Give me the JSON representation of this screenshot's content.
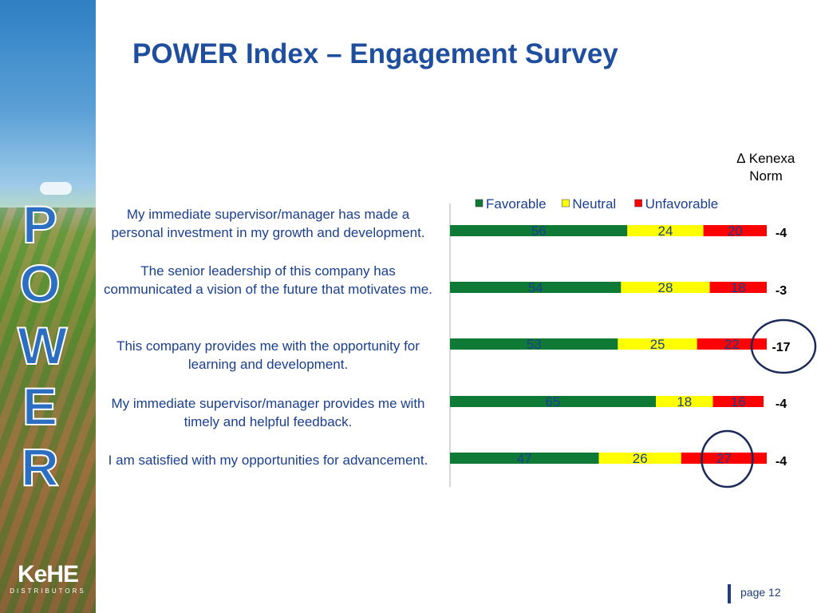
{
  "title": "POWER Index – Engagement Survey",
  "sidebar": {
    "letters": [
      "P",
      "O",
      "W",
      "E",
      "R"
    ],
    "logo_brand": "KeHE",
    "logo_sub": "DISTRIBUTORS"
  },
  "norm_header": {
    "line1": "∆ Kenexa",
    "line2": "Norm"
  },
  "footer": {
    "page": "page 12"
  },
  "colors": {
    "favorable": "#0f7a36",
    "neutral": "#ffff00",
    "unfavorable": "#ff0000",
    "title": "#1f4e9e",
    "question_text": "#1a3f8f",
    "circle": "#1c2a5a"
  },
  "chart_data": {
    "type": "bar",
    "orientation": "horizontal",
    "stacked": true,
    "legend_position": "top",
    "categories": [
      "My immediate supervisor/manager has made a personal investment in my growth and development.",
      "The senior leadership of this company has communicated a vision of the future that motivates me.",
      "This company provides me with the opportunity for learning and development.",
      "My immediate supervisor/manager provides me with timely and helpful feedback.",
      "I am satisfied with my opportunities for advancement."
    ],
    "series": [
      {
        "name": "Favorable",
        "values": [
          56,
          54,
          53,
          65,
          47
        ]
      },
      {
        "name": "Neutral",
        "values": [
          24,
          28,
          25,
          18,
          26
        ]
      },
      {
        "name": "Unfavorable",
        "values": [
          20,
          18,
          22,
          16,
          27
        ]
      }
    ],
    "norm_deltas": [
      "-4",
      "-3",
      "-17",
      "-4",
      "-4"
    ],
    "highlighted": [
      {
        "row": 2,
        "target": "norm_delta"
      },
      {
        "row": 4,
        "target": "Unfavorable"
      }
    ],
    "xlim": [
      0,
      100
    ]
  }
}
